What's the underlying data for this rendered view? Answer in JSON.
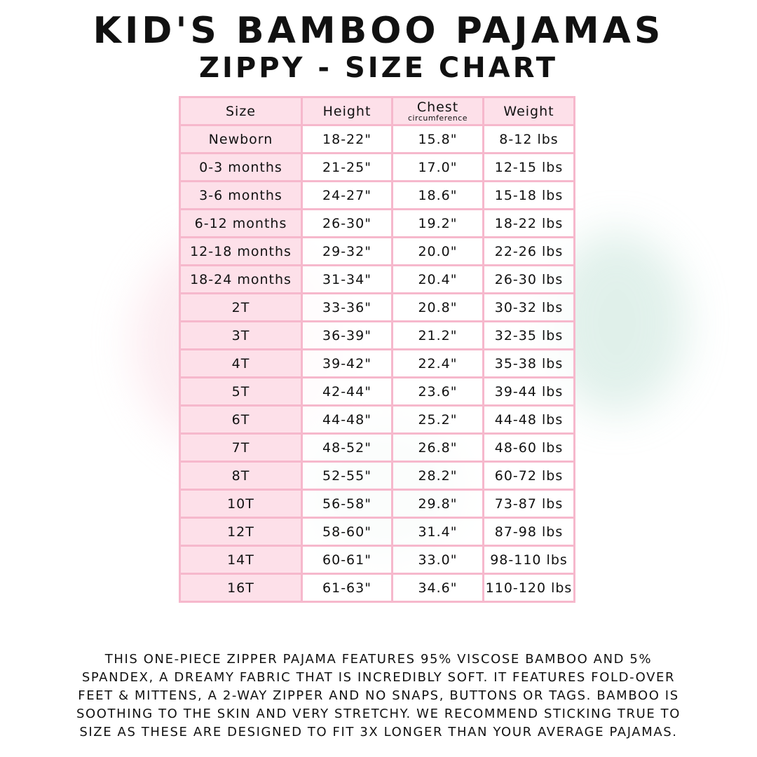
{
  "header": {
    "title": "KID'S BAMBOO PAJAMAS",
    "subtitle": "ZIPPY - SIZE CHART"
  },
  "table": {
    "columns": [
      "Size",
      "Height",
      "Chest",
      "Weight"
    ],
    "chest_sublabel": "circumference",
    "rows": [
      [
        "Newborn",
        "18-22\"",
        "15.8\"",
        "8-12 lbs"
      ],
      [
        "0-3 months",
        "21-25\"",
        "17.0\"",
        "12-15 lbs"
      ],
      [
        "3-6 months",
        "24-27\"",
        "18.6\"",
        "15-18 lbs"
      ],
      [
        "6-12 months",
        "26-30\"",
        "19.2\"",
        "18-22 lbs"
      ],
      [
        "12-18 months",
        "29-32\"",
        "20.0\"",
        "22-26 lbs"
      ],
      [
        "18-24 months",
        "31-34\"",
        "20.4\"",
        "26-30 lbs"
      ],
      [
        "2T",
        "33-36\"",
        "20.8\"",
        "30-32 lbs"
      ],
      [
        "3T",
        "36-39\"",
        "21.2\"",
        "32-35 lbs"
      ],
      [
        "4T",
        "39-42\"",
        "22.4\"",
        "35-38 lbs"
      ],
      [
        "5T",
        "42-44\"",
        "23.6\"",
        "39-44 lbs"
      ],
      [
        "6T",
        "44-48\"",
        "25.2\"",
        "44-48 lbs"
      ],
      [
        "7T",
        "48-52\"",
        "26.8\"",
        "48-60 lbs"
      ],
      [
        "8T",
        "52-55\"",
        "28.2\"",
        "60-72 lbs"
      ],
      [
        "10T",
        "56-58\"",
        "29.8\"",
        "73-87 lbs"
      ],
      [
        "12T",
        "58-60\"",
        "31.4\"",
        "87-98 lbs"
      ],
      [
        "14T",
        "60-61\"",
        "33.0\"",
        "98-110 lbs"
      ],
      [
        "16T",
        "61-63\"",
        "34.6\"",
        "110-120 lbs"
      ]
    ]
  },
  "description": {
    "lines": [
      "THIS ONE-PIECE ZIPPER PAJAMA FEATURES 95% VISCOSE BAMBOO AND 5%",
      "SPANDEX, A DREAMY FABRIC THAT IS INCREDIBLY SOFT. IT FEATURES FOLD-OVER",
      "FEET & MITTENS, A 2-WAY ZIPPER AND NO SNAPS, BUTTONS OR TAGS. BAMBOO IS",
      "SOOTHING TO THE SKIN AND VERY STRETCHY. WE RECOMMEND STICKING TRUE TO",
      "SIZE AS THESE ARE DESIGNED TO FIT 3X LONGER THAN YOUR AVERAGE PAJAMAS."
    ]
  },
  "colors": {
    "border": "#f6b8cc",
    "size_column": "#fde0e9",
    "text": "#111111"
  }
}
